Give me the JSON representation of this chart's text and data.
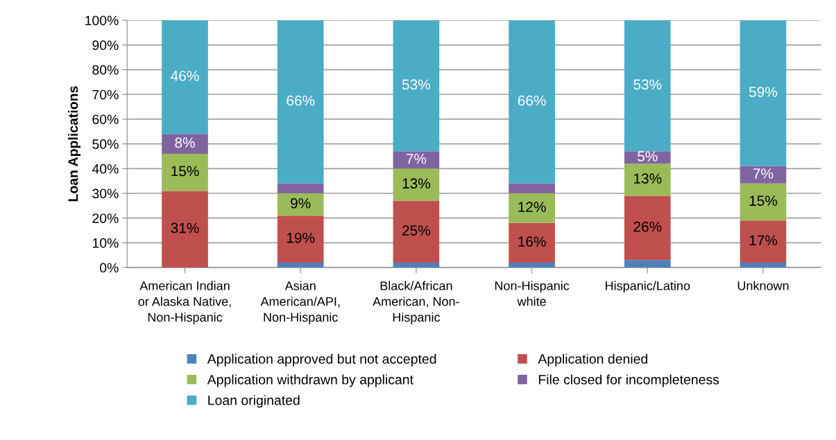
{
  "chart_data": {
    "type": "bar",
    "stacked": true,
    "ylabel": "Loan Applications",
    "categories": [
      "American Indian\nor Alaska Native,\nNon-Hispanic",
      "Asian\nAmerican/API,\nNon-Hispanic",
      "Black/African\nAmerican, Non-\nHispanic",
      "Non-Hispanic\nwhite",
      "Hispanic/Latino",
      "Unknown"
    ],
    "series": [
      {
        "name": "Application approved but not accepted",
        "color": "#4f81bd",
        "values": [
          0,
          2,
          2,
          2,
          3,
          2
        ],
        "value_labels": [
          null,
          null,
          null,
          null,
          null,
          null
        ]
      },
      {
        "name": "Application denied",
        "color": "#c0504d",
        "values": [
          31,
          19,
          25,
          16,
          26,
          17
        ],
        "value_labels": [
          "31%",
          "19%",
          "25%",
          "16%",
          "26%",
          "17%"
        ]
      },
      {
        "name": "Application withdrawn by applicant",
        "color": "#9bbb59",
        "values": [
          15,
          9,
          13,
          12,
          13,
          15
        ],
        "value_labels": [
          "15%",
          "9%",
          "13%",
          "12%",
          "13%",
          "15%"
        ]
      },
      {
        "name": "File closed for incompleteness",
        "color": "#8064a2",
        "values": [
          8,
          4,
          7,
          4,
          5,
          7
        ],
        "value_labels": [
          "8%",
          null,
          "7%",
          null,
          "5%",
          "7%"
        ]
      },
      {
        "name": "Loan originated",
        "color": "#4bacc6",
        "values": [
          46,
          66,
          53,
          66,
          53,
          59
        ],
        "value_labels": [
          "46%",
          "66%",
          "53%",
          "66%",
          "53%",
          "59%"
        ]
      }
    ],
    "ylim": [
      0,
      100
    ],
    "yticks": [
      {
        "value": 0,
        "label": "0%"
      },
      {
        "value": 10,
        "label": "10%"
      },
      {
        "value": 20,
        "label": "20%"
      },
      {
        "value": 30,
        "label": "30%"
      },
      {
        "value": 40,
        "label": "40%"
      },
      {
        "value": 50,
        "label": "50%"
      },
      {
        "value": 60,
        "label": "60%"
      },
      {
        "value": 70,
        "label": "70%"
      },
      {
        "value": 80,
        "label": "80%"
      },
      {
        "value": 90,
        "label": "90%"
      },
      {
        "value": 100,
        "label": "100%"
      }
    ],
    "grid": "y",
    "legend": "bottom"
  }
}
